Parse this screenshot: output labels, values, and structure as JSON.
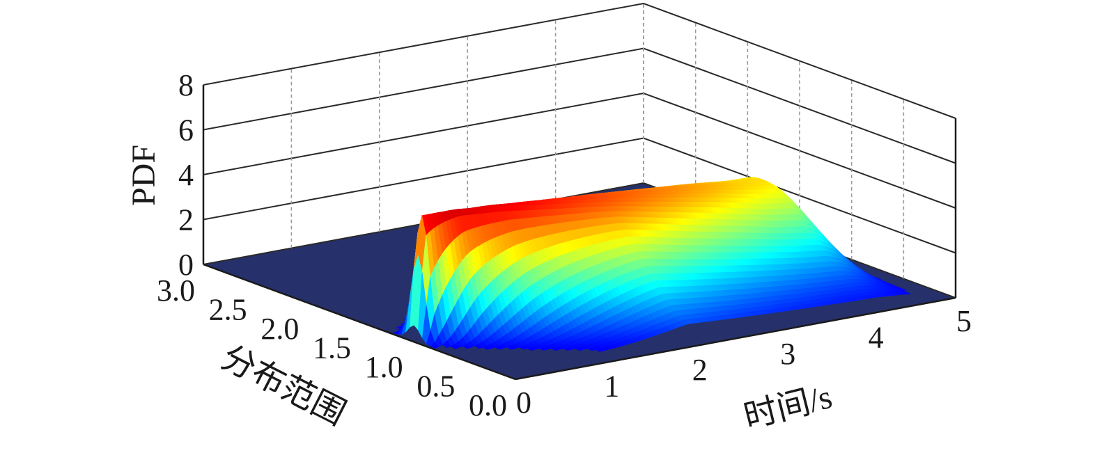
{
  "chart_data": {
    "type": "surface3d",
    "zlabel": "PDF",
    "xlabel": "时间/s",
    "ylabel": "分布范围",
    "x_ticks": [
      "0",
      "1",
      "2",
      "3",
      "4",
      "5"
    ],
    "y_ticks": [
      "0.0",
      "0.5",
      "1.0",
      "1.5",
      "2.0",
      "2.5",
      "3.0"
    ],
    "z_ticks": [
      "0",
      "2",
      "4",
      "6",
      "8"
    ],
    "xlim": [
      0,
      5
    ],
    "ylim": [
      0,
      3
    ],
    "zlim": [
      0,
      8
    ],
    "grid": true,
    "colormap": "jet",
    "floor_color": "#26306a",
    "surface": {
      "time": [
        0.0,
        0.5,
        1.0,
        1.5,
        2.0,
        2.5,
        3.0,
        3.5,
        4.0,
        4.5,
        5.0
      ],
      "peak_pdf": [
        0.0,
        5.5,
        5.3,
        5.05,
        4.8,
        4.55,
        4.3,
        4.05,
        3.75,
        3.6,
        0.0
      ],
      "peak_range": [
        1.0,
        1.0,
        1.02,
        1.05,
        1.08,
        1.12,
        1.16,
        1.2,
        1.24,
        1.28,
        1.3
      ]
    }
  }
}
